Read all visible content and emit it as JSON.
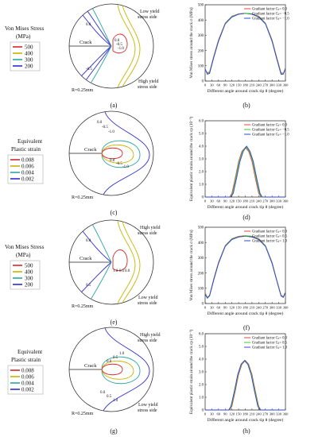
{
  "panel_letters": [
    "(a)",
    "(b)",
    "(c)",
    "(d)",
    "(e)",
    "(f)",
    "(g)",
    "(h)"
  ],
  "legend_titles": {
    "mises": [
      "Von Mises Stress",
      "(MPa)"
    ],
    "strain": [
      "Equivalent",
      "Plastic strain"
    ]
  },
  "legend_values": {
    "mises": [
      "500",
      "400",
      "300",
      "200"
    ],
    "strain": [
      "0.008",
      "0.006",
      "0.004",
      "0.002"
    ]
  },
  "legend_colors": [
    "#d62728",
    "#c8b400",
    "#2aa6a0",
    "#2b2bd6"
  ],
  "circle_text": {
    "crack": "Crack",
    "radius": "R=0.25mm",
    "top_ab": [
      "Low yield",
      "stress side"
    ],
    "bot_ab": [
      "High yield",
      "stress side"
    ],
    "top_ef": [
      "High yield",
      "stress side"
    ],
    "bot_ef": [
      "Low yield",
      "stress side"
    ]
  },
  "contour_labels": {
    "a": [
      "0.0",
      "-0.5",
      "-1.0",
      "0.0",
      "-0.5"
    ],
    "c": [
      "0.0",
      "-0.5",
      "-1.0",
      "0.0",
      "-0.5",
      "-1.0"
    ],
    "e": [
      "1.0",
      "0.5",
      "0.0",
      "0.0",
      "0.5"
    ],
    "g": [
      "0.0",
      "0.5",
      "1.0",
      "0.0",
      "0.5",
      "1.0"
    ]
  },
  "series_colors": [
    "#e8453c",
    "#33cc33",
    "#3344dd"
  ],
  "chart_data": [
    {
      "panel": "b",
      "type": "line",
      "xlabel": "Different angle around crack tip θ (degree)",
      "ylabel": "Von Mises stress around the crack σ (MPa)",
      "xlim": [
        0,
        360
      ],
      "ylim": [
        0,
        500
      ],
      "xticks": [
        "0",
        "30",
        "60",
        "90",
        "120",
        "150",
        "180",
        "210",
        "240",
        "270",
        "300",
        "330",
        "360"
      ],
      "yticks": [
        "0",
        "100",
        "200",
        "300",
        "400",
        "500"
      ],
      "series": [
        {
          "name": "Gradiant factor Gⱼ= 0.0",
          "x": [
            0,
            10,
            20,
            40,
            60,
            90,
            120,
            150,
            180,
            210,
            240,
            270,
            300,
            320,
            340,
            350,
            360
          ],
          "y": [
            70,
            55,
            60,
            170,
            270,
            380,
            425,
            440,
            445,
            440,
            425,
            380,
            270,
            160,
            55,
            50,
            75
          ]
        },
        {
          "name": "Gradiant factor Gⱼ= −0.5",
          "x": [
            0,
            10,
            20,
            40,
            60,
            90,
            120,
            150,
            180,
            210,
            240,
            270,
            300,
            320,
            340,
            350,
            360
          ],
          "y": [
            75,
            50,
            55,
            165,
            265,
            378,
            423,
            439,
            444,
            439,
            423,
            378,
            265,
            155,
            50,
            48,
            80
          ]
        },
        {
          "name": "Gradiant factor Gⱼ= −1.0",
          "x": [
            0,
            10,
            20,
            40,
            60,
            90,
            120,
            150,
            180,
            210,
            240,
            270,
            300,
            320,
            340,
            350,
            360
          ],
          "y": [
            80,
            45,
            50,
            160,
            260,
            375,
            420,
            438,
            443,
            438,
            420,
            375,
            260,
            150,
            45,
            45,
            85
          ]
        }
      ]
    },
    {
      "panel": "d",
      "type": "line",
      "xlabel": "Different angle around crack tip θ (degree)",
      "ylabel": "Equivalent plastic strain around the crack εp (10⁻³)",
      "xlim": [
        0,
        360
      ],
      "ylim": [
        0,
        6.0
      ],
      "xticks": [
        "0",
        "30",
        "60",
        "90",
        "120",
        "150",
        "180",
        "210",
        "240",
        "270",
        "300",
        "330",
        "360"
      ],
      "yticks": [
        "0",
        "1.0",
        "2.0",
        "3.0",
        "4.0",
        "5.0",
        "6.0"
      ],
      "series": [
        {
          "name": "Gradiant factor Gⱼ= 0.0",
          "x": [
            0,
            110,
            120,
            135,
            150,
            165,
            180,
            195,
            210,
            225,
            240,
            250,
            360
          ],
          "y": [
            0,
            0,
            0.3,
            1.5,
            2.8,
            3.6,
            3.9,
            3.6,
            2.8,
            1.5,
            0.3,
            0,
            0
          ]
        },
        {
          "name": "Gradiant factor Gⱼ= −0.5",
          "x": [
            0,
            113,
            123,
            138,
            153,
            168,
            183,
            198,
            213,
            228,
            243,
            253,
            360
          ],
          "y": [
            0,
            0,
            0.3,
            1.5,
            2.8,
            3.6,
            3.95,
            3.6,
            2.8,
            1.5,
            0.3,
            0,
            0
          ]
        },
        {
          "name": "Gradiant factor Gⱼ= −1.0",
          "x": [
            0,
            116,
            126,
            141,
            156,
            171,
            186,
            201,
            216,
            231,
            246,
            256,
            360
          ],
          "y": [
            0,
            0,
            0.3,
            1.5,
            2.8,
            3.6,
            4.0,
            3.6,
            2.8,
            1.5,
            0.3,
            0,
            0
          ]
        }
      ]
    },
    {
      "panel": "f",
      "type": "line",
      "xlabel": "Different angle around crack tip θ (degree)",
      "ylabel": "Von Mises stress around the crack σ (MPa)",
      "xlim": [
        0,
        360
      ],
      "ylim": [
        0,
        500
      ],
      "xticks": [
        "0",
        "30",
        "60",
        "90",
        "120",
        "150",
        "180",
        "210",
        "240",
        "270",
        "300",
        "330",
        "360"
      ],
      "yticks": [
        "0",
        "100",
        "200",
        "300",
        "400",
        "500"
      ],
      "series": [
        {
          "name": "Gradiant factor Gⱼ= 0.0",
          "x": [
            0,
            10,
            20,
            40,
            60,
            90,
            120,
            150,
            180,
            210,
            240,
            270,
            300,
            320,
            340,
            350,
            360
          ],
          "y": [
            70,
            40,
            55,
            170,
            270,
            380,
            425,
            440,
            445,
            440,
            425,
            380,
            270,
            160,
            55,
            45,
            75
          ]
        },
        {
          "name": "Gradiant factor Gⱼ= 0.5",
          "x": [
            0,
            10,
            20,
            40,
            60,
            90,
            120,
            150,
            180,
            210,
            240,
            270,
            300,
            320,
            340,
            350,
            360
          ],
          "y": [
            65,
            38,
            52,
            165,
            266,
            378,
            423,
            438,
            443,
            438,
            423,
            378,
            266,
            157,
            52,
            42,
            72
          ]
        },
        {
          "name": "Gradiant factor Gⱼ= 1.0",
          "x": [
            0,
            10,
            20,
            40,
            60,
            90,
            120,
            150,
            180,
            210,
            240,
            270,
            300,
            320,
            340,
            350,
            360
          ],
          "y": [
            60,
            35,
            50,
            160,
            262,
            375,
            420,
            436,
            441,
            436,
            420,
            375,
            262,
            154,
            50,
            40,
            70
          ]
        }
      ]
    },
    {
      "panel": "h",
      "type": "line",
      "xlabel": "Different angle around crack tip θ (degree)",
      "ylabel": "Equivalent plastic strain around the crack εp (10⁻³)",
      "xlim": [
        0,
        360
      ],
      "ylim": [
        0,
        6.0
      ],
      "xticks": [
        "0",
        "30",
        "60",
        "90",
        "120",
        "150",
        "180",
        "210",
        "240",
        "270",
        "300",
        "330",
        "360"
      ],
      "yticks": [
        "0",
        "1.0",
        "2.0",
        "3.0",
        "4.0",
        "5.0",
        "6.0"
      ],
      "series": [
        {
          "name": "Gradiant factor Gⱼ= 0.0",
          "x": [
            0,
            110,
            120,
            135,
            150,
            165,
            180,
            195,
            210,
            225,
            240,
            250,
            360
          ],
          "y": [
            0,
            0,
            0.3,
            1.5,
            2.8,
            3.6,
            3.9,
            3.6,
            2.8,
            1.5,
            0.3,
            0,
            0
          ]
        },
        {
          "name": "Gradiant factor Gⱼ= 0.5",
          "x": [
            0,
            108,
            118,
            133,
            148,
            163,
            178,
            193,
            208,
            223,
            238,
            248,
            360
          ],
          "y": [
            0,
            0,
            0.3,
            1.5,
            2.8,
            3.6,
            3.9,
            3.6,
            2.8,
            1.5,
            0.3,
            0,
            0
          ]
        },
        {
          "name": "Gradiant factor Gⱼ= 1.0",
          "x": [
            0,
            106,
            116,
            131,
            146,
            161,
            176,
            191,
            206,
            221,
            236,
            246,
            360
          ],
          "y": [
            0,
            0,
            0.3,
            1.5,
            2.8,
            3.6,
            3.88,
            3.6,
            2.8,
            1.5,
            0.3,
            0,
            0
          ]
        }
      ]
    }
  ]
}
